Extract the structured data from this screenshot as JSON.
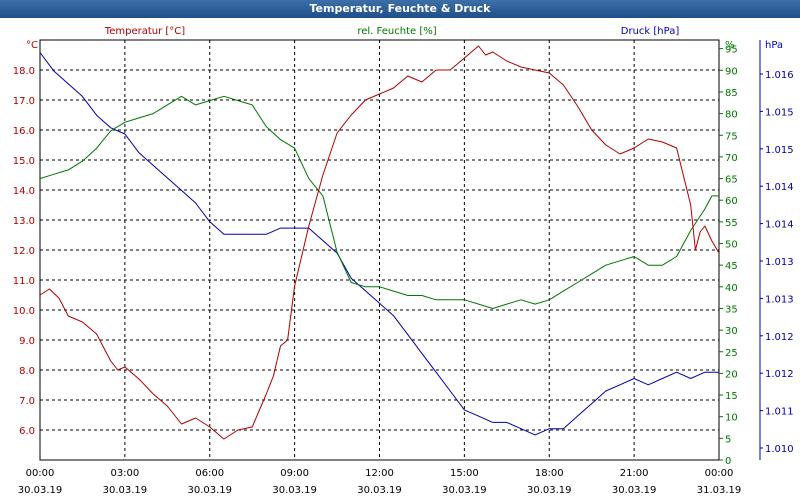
{
  "window": {
    "title": "Temperatur, Feuchte & Druck"
  },
  "colors": {
    "title_bar": "#1f4f88",
    "temperature": "#b00000",
    "humidity": "#007700",
    "pressure": "#0000aa",
    "grid": "#000000"
  },
  "chart_data": {
    "type": "line",
    "title": "Temperatur, Feuchte & Druck",
    "grid": true,
    "x": {
      "tick_times": [
        "00:00",
        "03:00",
        "06:00",
        "09:00",
        "12:00",
        "15:00",
        "18:00",
        "21:00",
        "00:00"
      ],
      "tick_dates": [
        "30.03.19",
        "30.03.19",
        "30.03.19",
        "30.03.19",
        "30.03.19",
        "30.03.19",
        "30.03.19",
        "30.03.19",
        "31.03.19"
      ],
      "range": [
        "30.03.19 00:00",
        "31.03.19 00:00"
      ]
    },
    "axes": {
      "temperature": {
        "label": "Temperatur [°C]",
        "unit": "°C",
        "side": "left",
        "ticks": [
          "6.0",
          "7.0",
          "8.0",
          "9.0",
          "10.0",
          "11.0",
          "12.0",
          "13.0",
          "14.0",
          "15.0",
          "16.0",
          "17.0",
          "18.0"
        ],
        "range": [
          5.0,
          19.0
        ]
      },
      "humidity": {
        "label": "rel. Feuchte [%]",
        "unit": "%",
        "side": "right",
        "ticks": [
          "0",
          "5",
          "10",
          "15",
          "20",
          "25",
          "30",
          "35",
          "40",
          "45",
          "50",
          "55",
          "60",
          "65",
          "70",
          "75",
          "80",
          "85",
          "90",
          "95"
        ],
        "range": [
          0,
          97
        ]
      },
      "pressure": {
        "label": "Druck [hPa]",
        "unit": "hPa",
        "side": "right-outer",
        "ticks": [
          "1.010",
          "1.011",
          "1.012",
          "1.012",
          "1.013",
          "1.013",
          "1.014",
          "1.014",
          "1.015",
          "1.015",
          "1.016"
        ],
        "range": [
          1009.8,
          1016.5
        ]
      }
    },
    "series": [
      {
        "name": "Temperatur [°C]",
        "axis": "temperature",
        "points": [
          [
            "30.03.19 00:00",
            10.5
          ],
          [
            "30.03.19 00:20",
            10.7
          ],
          [
            "30.03.19 00:40",
            10.4
          ],
          [
            "30.03.19 01:00",
            9.8
          ],
          [
            "30.03.19 01:30",
            9.6
          ],
          [
            "30.03.19 02:00",
            9.2
          ],
          [
            "30.03.19 02:30",
            8.3
          ],
          [
            "30.03.19 02:45",
            8.0
          ],
          [
            "30.03.19 03:00",
            8.1
          ],
          [
            "30.03.19 03:30",
            7.7
          ],
          [
            "30.03.19 04:00",
            7.2
          ],
          [
            "30.03.19 04:30",
            6.8
          ],
          [
            "30.03.19 05:00",
            6.2
          ],
          [
            "30.03.19 05:30",
            6.4
          ],
          [
            "30.03.19 06:00",
            6.1
          ],
          [
            "30.03.19 06:30",
            5.7
          ],
          [
            "30.03.19 07:00",
            6.0
          ],
          [
            "30.03.19 07:30",
            6.1
          ],
          [
            "30.03.19 08:00",
            7.2
          ],
          [
            "30.03.19 08:15",
            7.8
          ],
          [
            "30.03.19 08:30",
            8.8
          ],
          [
            "30.03.19 08:45",
            9.0
          ],
          [
            "30.03.19 09:00",
            10.8
          ],
          [
            "30.03.19 09:30",
            12.8
          ],
          [
            "30.03.19 10:00",
            14.5
          ],
          [
            "30.03.19 10:30",
            15.9
          ],
          [
            "30.03.19 11:00",
            16.5
          ],
          [
            "30.03.19 11:30",
            17.0
          ],
          [
            "30.03.19 12:00",
            17.2
          ],
          [
            "30.03.19 12:30",
            17.4
          ],
          [
            "30.03.19 13:00",
            17.8
          ],
          [
            "30.03.19 13:30",
            17.6
          ],
          [
            "30.03.19 14:00",
            18.0
          ],
          [
            "30.03.19 14:30",
            18.0
          ],
          [
            "30.03.19 15:00",
            18.4
          ],
          [
            "30.03.19 15:30",
            18.8
          ],
          [
            "30.03.19 15:45",
            18.5
          ],
          [
            "30.03.19 16:00",
            18.6
          ],
          [
            "30.03.19 16:30",
            18.3
          ],
          [
            "30.03.19 17:00",
            18.1
          ],
          [
            "30.03.19 17:30",
            18.0
          ],
          [
            "30.03.19 18:00",
            17.9
          ],
          [
            "30.03.19 18:30",
            17.5
          ],
          [
            "30.03.19 19:00",
            16.8
          ],
          [
            "30.03.19 19:30",
            16.0
          ],
          [
            "30.03.19 20:00",
            15.5
          ],
          [
            "30.03.19 20:30",
            15.2
          ],
          [
            "30.03.19 21:00",
            15.4
          ],
          [
            "30.03.19 21:30",
            15.7
          ],
          [
            "30.03.19 22:00",
            15.6
          ],
          [
            "30.03.19 22:30",
            15.4
          ],
          [
            "30.03.19 23:00",
            13.5
          ],
          [
            "30.03.19 23:10",
            12.0
          ],
          [
            "30.03.19 23:20",
            12.6
          ],
          [
            "30.03.19 23:30",
            12.8
          ],
          [
            "30.03.19 23:45",
            12.3
          ],
          [
            "31.03.19 00:00",
            11.9
          ]
        ]
      },
      {
        "name": "rel. Feuchte [%]",
        "axis": "humidity",
        "points": [
          [
            "30.03.19 00:00",
            65
          ],
          [
            "30.03.19 00:30",
            66
          ],
          [
            "30.03.19 01:00",
            67
          ],
          [
            "30.03.19 01:30",
            69
          ],
          [
            "30.03.19 02:00",
            72
          ],
          [
            "30.03.19 02:30",
            76
          ],
          [
            "30.03.19 03:00",
            78
          ],
          [
            "30.03.19 03:30",
            79
          ],
          [
            "30.03.19 04:00",
            80
          ],
          [
            "30.03.19 04:30",
            82
          ],
          [
            "30.03.19 05:00",
            84
          ],
          [
            "30.03.19 05:30",
            82
          ],
          [
            "30.03.19 06:00",
            83
          ],
          [
            "30.03.19 06:30",
            84
          ],
          [
            "30.03.19 07:00",
            83
          ],
          [
            "30.03.19 07:30",
            82
          ],
          [
            "30.03.19 08:00",
            77
          ],
          [
            "30.03.19 08:30",
            74
          ],
          [
            "30.03.19 09:00",
            72
          ],
          [
            "30.03.19 09:30",
            65
          ],
          [
            "30.03.19 10:00",
            61
          ],
          [
            "30.03.19 10:30",
            48
          ],
          [
            "30.03.19 11:00",
            41
          ],
          [
            "30.03.19 11:30",
            40
          ],
          [
            "30.03.19 12:00",
            40
          ],
          [
            "30.03.19 12:30",
            39
          ],
          [
            "30.03.19 13:00",
            38
          ],
          [
            "30.03.19 13:30",
            38
          ],
          [
            "30.03.19 14:00",
            37
          ],
          [
            "30.03.19 14:30",
            37
          ],
          [
            "30.03.19 15:00",
            37
          ],
          [
            "30.03.19 15:30",
            36
          ],
          [
            "30.03.19 16:00",
            35
          ],
          [
            "30.03.19 16:30",
            36
          ],
          [
            "30.03.19 17:00",
            37
          ],
          [
            "30.03.19 17:30",
            36
          ],
          [
            "30.03.19 18:00",
            37
          ],
          [
            "30.03.19 18:30",
            39
          ],
          [
            "30.03.19 19:00",
            41
          ],
          [
            "30.03.19 19:30",
            43
          ],
          [
            "30.03.19 20:00",
            45
          ],
          [
            "30.03.19 20:30",
            46
          ],
          [
            "30.03.19 21:00",
            47
          ],
          [
            "30.03.19 21:30",
            45
          ],
          [
            "30.03.19 22:00",
            45
          ],
          [
            "30.03.19 22:30",
            47
          ],
          [
            "30.03.19 23:00",
            53
          ],
          [
            "30.03.19 23:30",
            58
          ],
          [
            "30.03.19 23:45",
            61
          ],
          [
            "31.03.19 00:00",
            61
          ]
        ]
      },
      {
        "name": "Druck [hPa]",
        "axis": "pressure",
        "points": [
          [
            "30.03.19 00:00",
            1016.3
          ],
          [
            "30.03.19 00:30",
            1016.0
          ],
          [
            "30.03.19 01:00",
            1015.8
          ],
          [
            "30.03.19 01:30",
            1015.6
          ],
          [
            "30.03.19 02:00",
            1015.3
          ],
          [
            "30.03.19 02:30",
            1015.1
          ],
          [
            "30.03.19 03:00",
            1015.0
          ],
          [
            "30.03.19 03:30",
            1014.7
          ],
          [
            "30.03.19 04:00",
            1014.5
          ],
          [
            "30.03.19 04:30",
            1014.3
          ],
          [
            "30.03.19 05:00",
            1014.1
          ],
          [
            "30.03.19 05:30",
            1013.9
          ],
          [
            "30.03.19 06:00",
            1013.6
          ],
          [
            "30.03.19 06:30",
            1013.4
          ],
          [
            "30.03.19 07:00",
            1013.4
          ],
          [
            "30.03.19 07:30",
            1013.4
          ],
          [
            "30.03.19 08:00",
            1013.4
          ],
          [
            "30.03.19 08:30",
            1013.5
          ],
          [
            "30.03.19 09:00",
            1013.5
          ],
          [
            "30.03.19 09:30",
            1013.5
          ],
          [
            "30.03.19 10:00",
            1013.3
          ],
          [
            "30.03.19 10:30",
            1013.1
          ],
          [
            "30.03.19 11:00",
            1012.7
          ],
          [
            "30.03.19 11:30",
            1012.5
          ],
          [
            "30.03.19 12:00",
            1012.3
          ],
          [
            "30.03.19 12:30",
            1012.1
          ],
          [
            "30.03.19 13:00",
            1011.8
          ],
          [
            "30.03.19 13:30",
            1011.5
          ],
          [
            "30.03.19 14:00",
            1011.2
          ],
          [
            "30.03.19 14:30",
            1010.9
          ],
          [
            "30.03.19 15:00",
            1010.6
          ],
          [
            "30.03.19 15:30",
            1010.5
          ],
          [
            "30.03.19 16:00",
            1010.4
          ],
          [
            "30.03.19 16:30",
            1010.4
          ],
          [
            "30.03.19 17:00",
            1010.3
          ],
          [
            "30.03.19 17:30",
            1010.2
          ],
          [
            "30.03.19 18:00",
            1010.3
          ],
          [
            "30.03.19 18:30",
            1010.3
          ],
          [
            "30.03.19 19:00",
            1010.5
          ],
          [
            "30.03.19 19:30",
            1010.7
          ],
          [
            "30.03.19 20:00",
            1010.9
          ],
          [
            "30.03.19 20:30",
            1011.0
          ],
          [
            "30.03.19 21:00",
            1011.1
          ],
          [
            "30.03.19 21:30",
            1011.0
          ],
          [
            "30.03.19 22:00",
            1011.1
          ],
          [
            "30.03.19 22:30",
            1011.2
          ],
          [
            "30.03.19 23:00",
            1011.1
          ],
          [
            "30.03.19 23:30",
            1011.2
          ],
          [
            "31.03.19 00:00",
            1011.2
          ]
        ]
      }
    ]
  }
}
